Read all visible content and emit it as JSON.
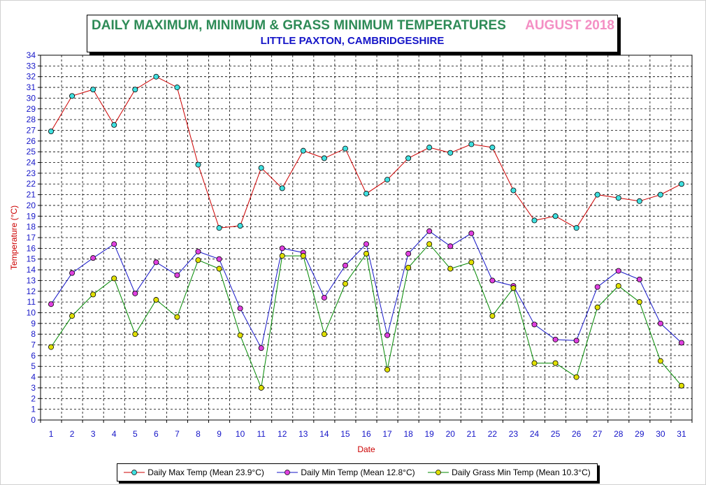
{
  "chart_data": {
    "type": "line",
    "title": "DAILY MAXIMUM, MINIMUM & GRASS MINIMUM TEMPERATURES",
    "title_date": "AUGUST 2018",
    "subtitle": "LITTLE PAXTON, CAMBRIDGESHIRE",
    "xlabel": "Date",
    "ylabel": "Temperature (°C)",
    "ylim": [
      0,
      34
    ],
    "grid": true,
    "legend_position": "bottom",
    "x": [
      1,
      2,
      3,
      4,
      5,
      6,
      7,
      8,
      9,
      10,
      11,
      12,
      13,
      14,
      15,
      16,
      17,
      18,
      19,
      20,
      21,
      22,
      23,
      24,
      25,
      26,
      27,
      28,
      29,
      30,
      31
    ],
    "series": [
      {
        "name": "Daily Max Temp (Mean 23.9°C)",
        "line_color": "#cc0000",
        "marker_color": "#40e0e0",
        "values": [
          26.9,
          30.2,
          30.8,
          27.5,
          30.8,
          32.0,
          31.0,
          23.8,
          17.9,
          18.1,
          23.5,
          21.6,
          25.1,
          24.4,
          25.3,
          21.1,
          22.4,
          24.4,
          25.4,
          24.9,
          25.7,
          25.4,
          21.4,
          18.6,
          19.0,
          17.9,
          21.0,
          20.7,
          20.4,
          21.0,
          22.0
        ]
      },
      {
        "name": "Daily Min Temp (Mean 12.8°C)",
        "line_color": "#1515c8",
        "marker_color": "#e040e0",
        "values": [
          10.8,
          13.7,
          15.1,
          16.4,
          11.8,
          14.7,
          13.5,
          15.7,
          15.0,
          10.4,
          6.7,
          16.0,
          15.6,
          11.4,
          14.4,
          16.4,
          7.9,
          15.5,
          17.6,
          16.2,
          17.4,
          13.0,
          12.5,
          8.9,
          7.5,
          7.4,
          12.4,
          13.9,
          13.1,
          9.0,
          7.2
        ]
      },
      {
        "name": "Daily Grass Min Temp (Mean 10.3°C)",
        "line_color": "#008800",
        "marker_color": "#e0e000",
        "values": [
          6.8,
          9.7,
          11.7,
          13.2,
          8.0,
          11.2,
          9.6,
          14.9,
          14.1,
          7.9,
          3.0,
          15.3,
          15.3,
          8.0,
          12.7,
          15.5,
          4.7,
          14.2,
          16.4,
          14.1,
          14.7,
          9.7,
          12.3,
          5.3,
          5.3,
          4.0,
          10.5,
          12.5,
          11.0,
          5.5,
          3.2
        ]
      }
    ]
  }
}
